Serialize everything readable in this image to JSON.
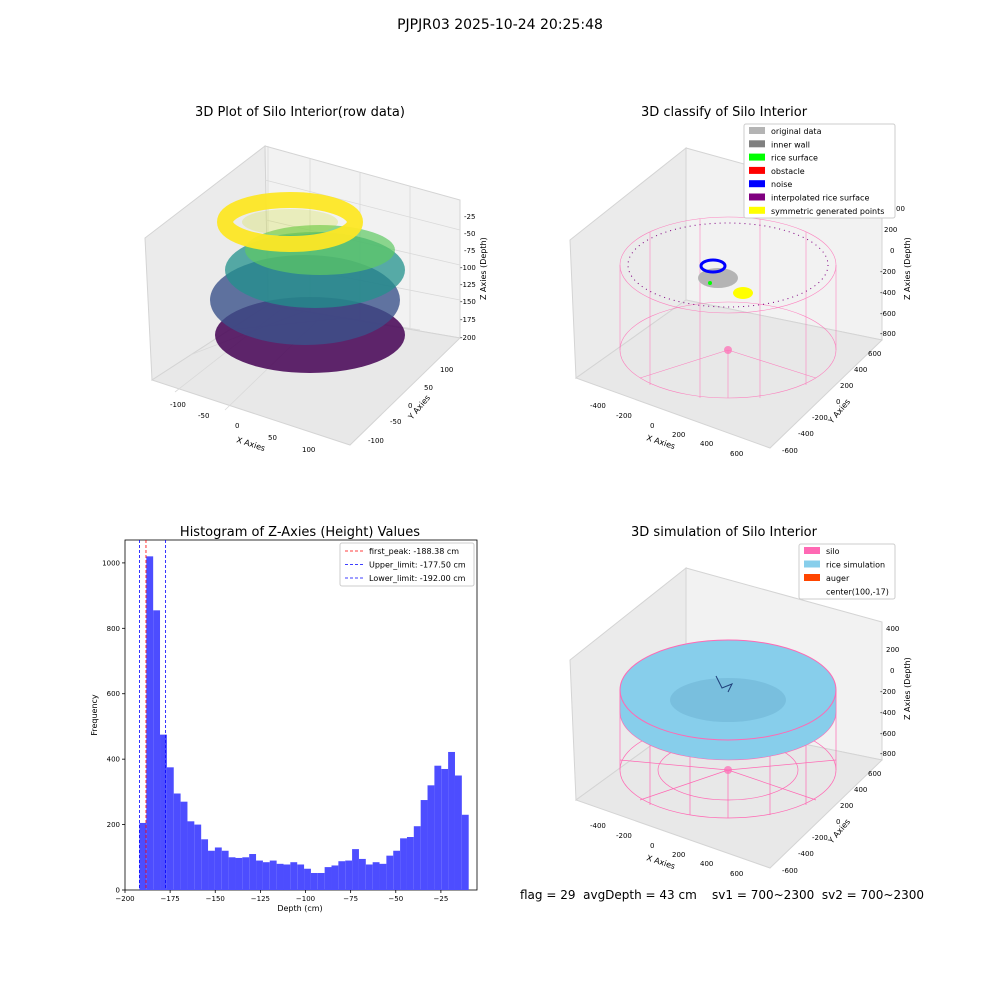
{
  "figure": {
    "suptitle": "PJPJR03 2025-10-24 20:25:48",
    "footer": "flag = 29  avgDepth = 43 cm    sv1 = 700~2300  sv2 = 700~2300"
  },
  "chart_data": [
    {
      "type": "scatter3d",
      "title": "3D Plot of Silo Interior(row data)",
      "xlabel": "X Axies",
      "ylabel": "Y Axies",
      "zlabel": "Z Axies (Depth)",
      "xticks": [
        "-100",
        "-50",
        "0",
        "50",
        "100"
      ],
      "yticks": [
        "-100",
        "-50",
        "0",
        "50",
        "100"
      ],
      "zticks": [
        "-25",
        "-50",
        "-75",
        "-100",
        "-125",
        "-150",
        "-175",
        "-200"
      ],
      "colormap": "viridis",
      "colors": {
        "low": "#440154",
        "mid": "#21918c",
        "high": "#fde725"
      }
    },
    {
      "type": "scatter3d",
      "title": "3D classify of Silo Interior",
      "zlabel": "Z Axies (Depth)",
      "xlabel": "X Axies",
      "ylabel": "Y Axies",
      "xticks": [
        "-400",
        "-200",
        "0",
        "200",
        "400",
        "600"
      ],
      "yticks": [
        "-600",
        "-400",
        "-200",
        "0",
        "200",
        "400",
        "600"
      ],
      "zticks": [
        "200",
        "0",
        "-200",
        "-400",
        "-600",
        "-800"
      ],
      "zticks_partial": "00",
      "legend": [
        {
          "label": "original data",
          "color": "#b4b4b4"
        },
        {
          "label": "inner wall",
          "color": "#808080"
        },
        {
          "label": "rice surface",
          "color": "#00ff00"
        },
        {
          "label": "obstacle",
          "color": "#ff0000"
        },
        {
          "label": "noise",
          "color": "#0000ff"
        },
        {
          "label": "interpolated rice surface",
          "color": "#800080"
        },
        {
          "label": "symmetric generated points",
          "color": "#ffff00"
        }
      ],
      "legend_position": "top-right"
    },
    {
      "type": "bar",
      "title": "Histogram of Z-Axies (Height) Values",
      "xlabel": "Depth (cm)",
      "ylabel": "Frequency",
      "xlim": [
        -200,
        -5
      ],
      "ylim": [
        0,
        1070
      ],
      "xticks": [
        -200,
        -175,
        -150,
        -125,
        -100,
        -75,
        -50,
        -25
      ],
      "yticks": [
        0,
        200,
        400,
        600,
        800,
        1000
      ],
      "bar_color": "#4d4dff",
      "bins": [
        {
          "x0": -192.0,
          "x1": -188.2,
          "value": 205
        },
        {
          "x0": -188.2,
          "x1": -184.4,
          "value": 1020
        },
        {
          "x0": -184.4,
          "x1": -180.6,
          "value": 855
        },
        {
          "x0": -180.6,
          "x1": -176.8,
          "value": 475
        },
        {
          "x0": -176.8,
          "x1": -173.0,
          "value": 375
        },
        {
          "x0": -173.0,
          "x1": -169.2,
          "value": 295
        },
        {
          "x0": -169.2,
          "x1": -165.4,
          "value": 270
        },
        {
          "x0": -165.4,
          "x1": -161.6,
          "value": 210
        },
        {
          "x0": -161.6,
          "x1": -157.8,
          "value": 200
        },
        {
          "x0": -157.8,
          "x1": -154.0,
          "value": 155
        },
        {
          "x0": -154.0,
          "x1": -150.2,
          "value": 120
        },
        {
          "x0": -150.2,
          "x1": -146.4,
          "value": 130
        },
        {
          "x0": -146.4,
          "x1": -142.6,
          "value": 120
        },
        {
          "x0": -142.6,
          "x1": -138.8,
          "value": 100
        },
        {
          "x0": -138.8,
          "x1": -135.0,
          "value": 98
        },
        {
          "x0": -135.0,
          "x1": -131.2,
          "value": 100
        },
        {
          "x0": -131.2,
          "x1": -127.4,
          "value": 110
        },
        {
          "x0": -127.4,
          "x1": -123.6,
          "value": 90
        },
        {
          "x0": -123.6,
          "x1": -119.8,
          "value": 85
        },
        {
          "x0": -119.8,
          "x1": -116.0,
          "value": 90
        },
        {
          "x0": -116.0,
          "x1": -112.2,
          "value": 80
        },
        {
          "x0": -112.2,
          "x1": -108.4,
          "value": 78
        },
        {
          "x0": -108.4,
          "x1": -104.6,
          "value": 85
        },
        {
          "x0": -104.6,
          "x1": -100.8,
          "value": 78
        },
        {
          "x0": -100.8,
          "x1": -97.0,
          "value": 65
        },
        {
          "x0": -97.0,
          "x1": -93.2,
          "value": 52
        },
        {
          "x0": -93.2,
          "x1": -89.4,
          "value": 52
        },
        {
          "x0": -89.4,
          "x1": -85.6,
          "value": 70
        },
        {
          "x0": -85.6,
          "x1": -81.8,
          "value": 75
        },
        {
          "x0": -81.8,
          "x1": -78.0,
          "value": 88
        },
        {
          "x0": -78.0,
          "x1": -74.2,
          "value": 90
        },
        {
          "x0": -74.2,
          "x1": -70.4,
          "value": 125
        },
        {
          "x0": -70.4,
          "x1": -66.6,
          "value": 95
        },
        {
          "x0": -66.6,
          "x1": -62.8,
          "value": 78
        },
        {
          "x0": -62.8,
          "x1": -59.0,
          "value": 85
        },
        {
          "x0": -59.0,
          "x1": -55.2,
          "value": 80
        },
        {
          "x0": -55.2,
          "x1": -51.4,
          "value": 105
        },
        {
          "x0": -51.4,
          "x1": -47.6,
          "value": 120
        },
        {
          "x0": -47.6,
          "x1": -43.8,
          "value": 158
        },
        {
          "x0": -43.8,
          "x1": -40.0,
          "value": 162
        },
        {
          "x0": -40.0,
          "x1": -36.2,
          "value": 195
        },
        {
          "x0": -36.2,
          "x1": -32.4,
          "value": 275
        },
        {
          "x0": -32.4,
          "x1": -28.6,
          "value": 320
        },
        {
          "x0": -28.6,
          "x1": -24.8,
          "value": 380
        },
        {
          "x0": -24.8,
          "x1": -21.0,
          "value": 370
        },
        {
          "x0": -21.0,
          "x1": -17.2,
          "value": 422
        },
        {
          "x0": -17.2,
          "x1": -13.4,
          "value": 350
        },
        {
          "x0": -13.4,
          "x1": -9.6,
          "value": 230
        }
      ],
      "vlines": [
        {
          "label": "first_peak: -188.38 cm",
          "x": -188.38,
          "color": "#ff0000",
          "style": "dashed"
        },
        {
          "label": "Upper_limit: -177.50 cm",
          "x": -177.5,
          "color": "#0000ff",
          "style": "dashed"
        },
        {
          "label": "Lower_limit: -192.00 cm",
          "x": -192.0,
          "color": "#0000ff",
          "style": "dashed"
        }
      ],
      "legend_position": "top-right",
      "grid": false
    },
    {
      "type": "surface3d",
      "title": "3D simulation of Silo Interior",
      "xlabel": "X Axies",
      "ylabel": "Y Axies",
      "zlabel": "Z Axies (Depth)",
      "xticks": [
        "-400",
        "-200",
        "0",
        "200",
        "400",
        "600"
      ],
      "yticks": [
        "-600",
        "-400",
        "-200",
        "0",
        "200",
        "400",
        "600"
      ],
      "zticks": [
        "400",
        "200",
        "0",
        "-200",
        "-400",
        "-600",
        "-800"
      ],
      "legend": [
        {
          "label": "silo",
          "color": "#ff69b4"
        },
        {
          "label": "rice simulation",
          "color": "#87ceeb"
        },
        {
          "label": "auger",
          "color": "#ff4500"
        },
        {
          "label": "center(100,-17)",
          "color": ""
        }
      ],
      "legend_position": "top-right"
    }
  ]
}
